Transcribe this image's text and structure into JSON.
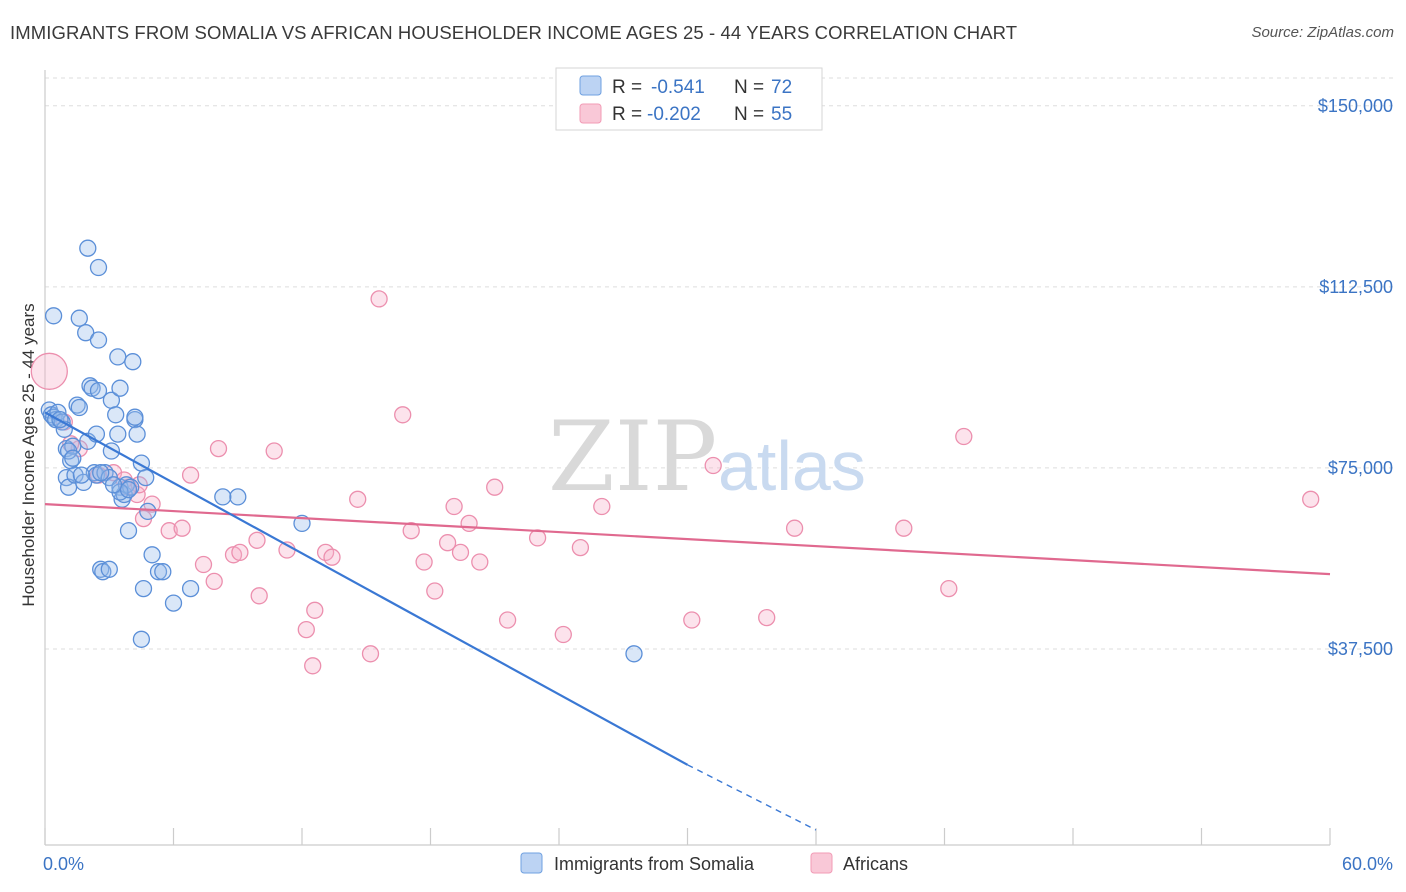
{
  "header": {
    "title": "IMMIGRANTS FROM SOMALIA VS AFRICAN HOUSEHOLDER INCOME AGES 25 - 44 YEARS CORRELATION CHART",
    "source": "Source: ZipAtlas.com"
  },
  "watermark": {
    "zip": "ZIP",
    "atlas": "atlas"
  },
  "legend": {
    "r_label": "R =",
    "n_label": "N =",
    "rows": [
      {
        "r": "-0.541",
        "n": "72"
      },
      {
        "r": "-0.202",
        "n": "55"
      }
    ]
  },
  "chart_data": {
    "type": "scatter",
    "title": "IMMIGRANTS FROM SOMALIA VS AFRICAN HOUSEHOLDER INCOME AGES 25 - 44 YEARS CORRELATION CHART",
    "xlabel": "",
    "ylabel": "Householder Income Ages 25 - 44 years",
    "xlim": [
      0,
      60
    ],
    "ylim": [
      0,
      157000
    ],
    "x_tick_labels": [
      "0.0%",
      "60.0%"
    ],
    "y_ticks": [
      37500,
      75000,
      112500,
      150000
    ],
    "y_tick_labels": [
      "$37,500",
      "$75,000",
      "$112,500",
      "$150,000"
    ],
    "grid": true,
    "legend_position": "top-center",
    "series": [
      {
        "name": "Immigrants from Somalia",
        "color": "#6fa0e0",
        "r": -0.541,
        "n": 72,
        "trend": {
          "x": [
            0,
            30
          ],
          "y": [
            86500,
            13500
          ],
          "dashed_to": [
            36,
            0
          ]
        },
        "points": [
          [
            0.2,
            87000
          ],
          [
            0.3,
            86000
          ],
          [
            0.4,
            85500
          ],
          [
            0.5,
            85000
          ],
          [
            0.6,
            86500
          ],
          [
            0.8,
            84500
          ],
          [
            0.9,
            83000
          ],
          [
            1.0,
            79000
          ],
          [
            1.0,
            73000
          ],
          [
            1.1,
            71000
          ],
          [
            1.2,
            76500
          ],
          [
            1.3,
            79500
          ],
          [
            1.4,
            73500
          ],
          [
            1.5,
            88000
          ],
          [
            1.6,
            87500
          ],
          [
            1.8,
            72000
          ],
          [
            2.0,
            80500
          ],
          [
            2.1,
            92000
          ],
          [
            2.2,
            91500
          ],
          [
            2.3,
            74000
          ],
          [
            2.4,
            73500
          ],
          [
            2.5,
            91000
          ],
          [
            2.6,
            54000
          ],
          [
            2.8,
            74000
          ],
          [
            3.0,
            73000
          ],
          [
            3.1,
            89000
          ],
          [
            3.3,
            86000
          ],
          [
            3.4,
            82000
          ],
          [
            3.5,
            71000
          ],
          [
            3.6,
            68500
          ],
          [
            3.7,
            69500
          ],
          [
            3.8,
            71500
          ],
          [
            3.9,
            62000
          ],
          [
            4.0,
            71000
          ],
          [
            4.2,
            85000
          ],
          [
            4.3,
            82000
          ],
          [
            4.5,
            76000
          ],
          [
            4.7,
            73000
          ],
          [
            4.8,
            66000
          ],
          [
            5.0,
            57000
          ],
          [
            5.3,
            53500
          ],
          [
            5.5,
            53500
          ],
          [
            3.1,
            78500
          ],
          [
            3.4,
            98000
          ],
          [
            3.5,
            91500
          ],
          [
            2.7,
            53500
          ],
          [
            0.4,
            106500
          ],
          [
            1.6,
            106000
          ],
          [
            1.9,
            103000
          ],
          [
            2.5,
            101500
          ],
          [
            2.0,
            120500
          ],
          [
            2.5,
            116500
          ],
          [
            3.0,
            54000
          ],
          [
            4.1,
            97000
          ],
          [
            4.2,
            85500
          ],
          [
            4.6,
            50000
          ],
          [
            4.5,
            39500
          ],
          [
            6.0,
            47000
          ],
          [
            6.8,
            50000
          ],
          [
            9.0,
            69000
          ],
          [
            8.3,
            69000
          ],
          [
            12.0,
            63500
          ],
          [
            27.5,
            36500
          ],
          [
            3.5,
            70000
          ],
          [
            3.9,
            70500
          ],
          [
            2.6,
            74000
          ],
          [
            1.7,
            73500
          ],
          [
            1.1,
            78500
          ],
          [
            0.7,
            85000
          ],
          [
            1.3,
            77000
          ],
          [
            2.4,
            82000
          ],
          [
            3.2,
            71500
          ]
        ]
      },
      {
        "name": "Africans",
        "color": "#f29bb6",
        "r": -0.202,
        "n": 55,
        "trend": {
          "x": [
            0,
            60
          ],
          "y": [
            67500,
            53000
          ]
        },
        "points": [
          [
            0.2,
            95000
          ],
          [
            0.9,
            84500
          ],
          [
            1.6,
            79000
          ],
          [
            2.5,
            73500
          ],
          [
            3.2,
            74000
          ],
          [
            3.7,
            72500
          ],
          [
            3.9,
            71000
          ],
          [
            4.3,
            69500
          ],
          [
            4.6,
            64500
          ],
          [
            5.0,
            67500
          ],
          [
            5.8,
            62000
          ],
          [
            6.4,
            62500
          ],
          [
            6.8,
            73500
          ],
          [
            7.4,
            55000
          ],
          [
            7.9,
            51500
          ],
          [
            8.1,
            79000
          ],
          [
            8.8,
            57000
          ],
          [
            9.1,
            57500
          ],
          [
            9.9,
            60000
          ],
          [
            10.0,
            48500
          ],
          [
            10.7,
            78500
          ],
          [
            11.3,
            58000
          ],
          [
            12.2,
            41500
          ],
          [
            12.6,
            45500
          ],
          [
            12.5,
            34000
          ],
          [
            13.1,
            57500
          ],
          [
            13.4,
            56500
          ],
          [
            14.6,
            68500
          ],
          [
            15.2,
            36500
          ],
          [
            15.6,
            110000
          ],
          [
            16.7,
            86000
          ],
          [
            17.1,
            62000
          ],
          [
            17.7,
            55500
          ],
          [
            18.2,
            49500
          ],
          [
            18.8,
            59500
          ],
          [
            19.1,
            67000
          ],
          [
            19.4,
            57500
          ],
          [
            19.8,
            63500
          ],
          [
            20.3,
            55500
          ],
          [
            21.0,
            71000
          ],
          [
            21.6,
            43500
          ],
          [
            23.0,
            60500
          ],
          [
            24.2,
            40500
          ],
          [
            25.0,
            58500
          ],
          [
            26.0,
            67000
          ],
          [
            30.2,
            43500
          ],
          [
            31.2,
            75500
          ],
          [
            33.7,
            44000
          ],
          [
            35.0,
            62500
          ],
          [
            40.1,
            62500
          ],
          [
            42.2,
            50000
          ],
          [
            42.9,
            81500
          ],
          [
            59.1,
            68500
          ],
          [
            4.4,
            71500
          ],
          [
            1.2,
            80000
          ]
        ]
      }
    ]
  }
}
